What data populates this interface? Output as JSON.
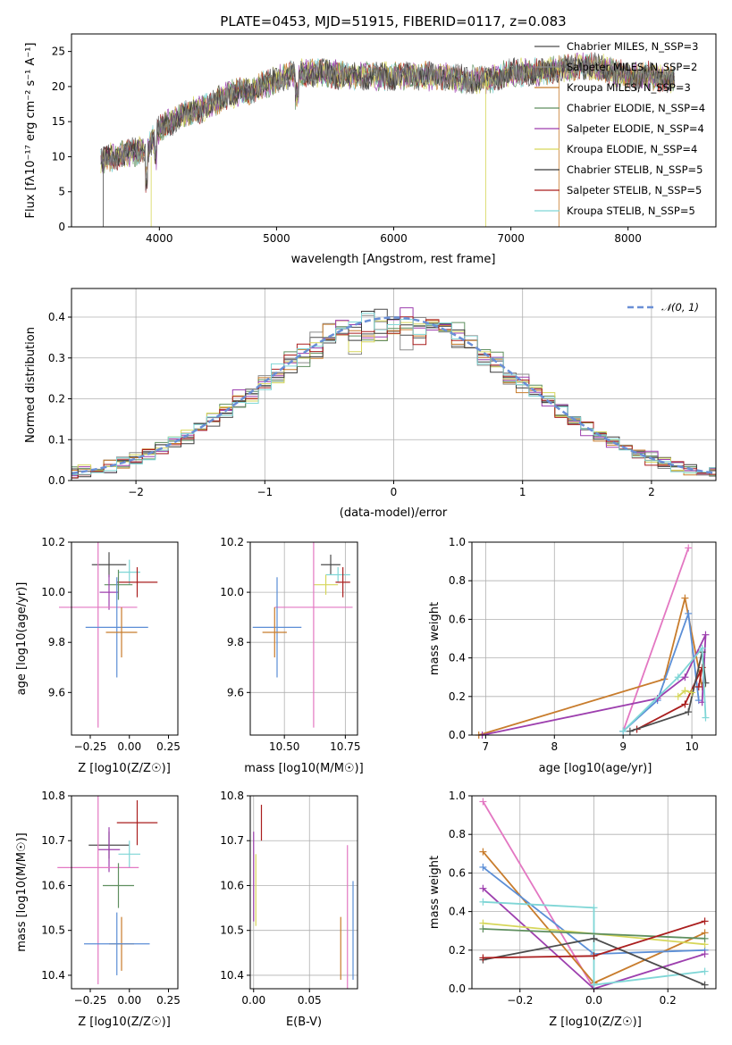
{
  "chart_data": [
    {
      "id": "spectrum",
      "type": "line",
      "title": "PLATE=0453, MJD=51915, FIBERID=0117, z=0.083",
      "xlabel": "wavelength [Angstrom, rest frame]",
      "ylabel": "Flux [fλ10⁻¹⁷ erg cm⁻² s⁻¹ A⁻¹]",
      "xlim": [
        3250,
        8750
      ],
      "ylim": [
        0,
        27.5
      ],
      "xticks": [
        4000,
        5000,
        6000,
        7000,
        8000
      ],
      "yticks": [
        0,
        5,
        10,
        15,
        20,
        25
      ],
      "legend_position": "right",
      "series": [
        {
          "name": "Chabrier MILES, N_SSP=3",
          "color": "#4c4c4c"
        },
        {
          "name": "Salpeter MILES, N_SSP=2",
          "color": "#8b8b8b"
        },
        {
          "name": "Kroupa MILES, N_SSP=3",
          "color": "#c87c2c"
        },
        {
          "name": "Chabrier ELODIE, N_SSP=4",
          "color": "#5f8f5f"
        },
        {
          "name": "Salpeter ELODIE, N_SSP=4",
          "color": "#9d3fae"
        },
        {
          "name": "Kroupa ELODIE, N_SSP=4",
          "color": "#d6d65a"
        },
        {
          "name": "Chabrier STELIB, N_SSP=5",
          "color": "#3a3a3a"
        },
        {
          "name": "Salpeter STELIB, N_SSP=5",
          "color": "#aa1e1e"
        },
        {
          "name": "Kroupa STELIB, N_SSP=5",
          "color": "#7fd6d6"
        }
      ],
      "continuum": {
        "x": [
          3500,
          3700,
          3900,
          4000,
          4200,
          4400,
          4600,
          4800,
          5000,
          5200,
          5400,
          5600,
          5800,
          6000,
          6200,
          6400,
          6600,
          6800,
          7000,
          7200,
          7400,
          7600,
          7800,
          8000,
          8200,
          8400
        ],
        "y": [
          9.5,
          10.5,
          11,
          14,
          16,
          17,
          19,
          19.5,
          21,
          22,
          22,
          21.5,
          21.5,
          21.5,
          21.5,
          21.5,
          21,
          21,
          22,
          22,
          22.5,
          23,
          22.5,
          21.5,
          21.5,
          21
        ]
      }
    },
    {
      "id": "residuals",
      "type": "line",
      "xlabel": "(data-model)/error",
      "ylabel": "Normed distribution",
      "xlim": [
        -2.5,
        2.5
      ],
      "ylim": [
        0,
        0.47
      ],
      "xticks": [
        -2,
        -1,
        0,
        1,
        2
      ],
      "yticks": [
        0.0,
        0.1,
        0.2,
        0.3,
        0.4
      ],
      "grid": true,
      "legend_position": "top-right",
      "reference_curve": {
        "name": "𝒩(0, 1)",
        "color": "#6a8fd6",
        "mean": 0,
        "sigma": 1
      }
    },
    {
      "id": "age-vs-Z",
      "type": "scatter",
      "xlabel": "Z [log10(Z/Z☉)]",
      "ylabel": "age  [log10(age/yr)]",
      "xlim": [
        -0.37,
        0.31
      ],
      "ylim": [
        9.43,
        10.2
      ],
      "xticks": [
        -0.25,
        0.0,
        0.25
      ],
      "yticks": [
        9.6,
        9.8,
        10.0,
        10.2
      ]
    },
    {
      "id": "age-vs-mass",
      "type": "scatter",
      "xlabel": "mass [log10(M/M☉)]",
      "ylabel": "",
      "xlim": [
        10.36,
        10.8
      ],
      "ylim": [
        9.43,
        10.2
      ],
      "xticks": [
        10.5,
        10.75
      ],
      "yticks": [
        9.6,
        9.8,
        10.0,
        10.2
      ],
      "grid": true
    },
    {
      "id": "weight-vs-age",
      "type": "line",
      "xlabel": "age  [log10(age/yr)]",
      "ylabel": "mass weight",
      "xlim": [
        6.8,
        10.35
      ],
      "ylim": [
        0,
        1.0
      ],
      "xticks": [
        7,
        8,
        9,
        10
      ],
      "yticks": [
        0.0,
        0.2,
        0.4,
        0.6,
        0.8,
        1.0
      ],
      "grid": true
    },
    {
      "id": "mass-vs-Z",
      "type": "scatter",
      "xlabel": "Z [log10(Z/Z☉)]",
      "ylabel": "mass [log10(M/M☉)]",
      "xlim": [
        -0.37,
        0.31
      ],
      "ylim": [
        10.37,
        10.8
      ],
      "xticks": [
        -0.25,
        0.0,
        0.25
      ],
      "yticks": [
        10.4,
        10.5,
        10.6,
        10.7,
        10.8
      ]
    },
    {
      "id": "mass-vs-EBV",
      "type": "scatter",
      "xlabel": "E(B-V)",
      "ylabel": "",
      "xlim": [
        -0.003,
        0.093
      ],
      "ylim": [
        10.37,
        10.8
      ],
      "xticks": [
        0.0,
        0.05
      ],
      "yticks": [
        10.4,
        10.5,
        10.6,
        10.7,
        10.8
      ],
      "grid": true
    },
    {
      "id": "weight-vs-Z",
      "type": "line",
      "xlabel": "Z [log10(Z/Z☉)]",
      "ylabel": "mass weight",
      "xlim": [
        -0.33,
        0.33
      ],
      "ylim": [
        0,
        1.0
      ],
      "xticks": [
        -0.2,
        0.0,
        0.2
      ],
      "yticks": [
        0.0,
        0.2,
        0.4,
        0.6,
        0.8,
        1.0
      ],
      "grid": true
    }
  ]
}
